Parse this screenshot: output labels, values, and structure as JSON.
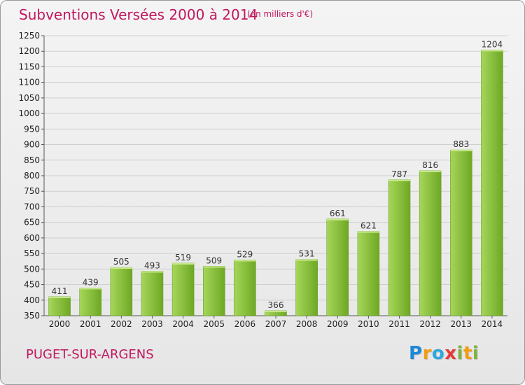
{
  "header": {
    "title": "Subventions Versées 2000 à 2014",
    "unit_note": "(en milliers d'€)"
  },
  "footer": {
    "commune": "PUGET-SUR-ARGENS",
    "logo": [
      {
        "ch": "P",
        "color": "#1e88d6"
      },
      {
        "ch": "r",
        "color": "#f39c12"
      },
      {
        "ch": "o",
        "color": "#2aa8e0"
      },
      {
        "ch": "x",
        "color": "#e53935"
      },
      {
        "ch": "i",
        "color": "#7cb342"
      },
      {
        "ch": "t",
        "color": "#f39c12"
      },
      {
        "ch": "i",
        "color": "#7cb342"
      }
    ]
  },
  "colors": {
    "title": "#c0185f",
    "bar_light": "#a6d65a",
    "bar_dark": "#6ea824",
    "grid": "#cfcfcf"
  },
  "chart_data": {
    "type": "bar",
    "categories": [
      "2000",
      "2001",
      "2002",
      "2003",
      "2004",
      "2005",
      "2006",
      "2007",
      "2008",
      "2009",
      "2010",
      "2011",
      "2012",
      "2013",
      "2014"
    ],
    "values": [
      411,
      439,
      505,
      493,
      519,
      509,
      529,
      366,
      531,
      661,
      621,
      787,
      816,
      883,
      1204
    ],
    "ylim": [
      350,
      1250
    ],
    "ytick_step": 50,
    "grid": true,
    "data_labels": true
  }
}
